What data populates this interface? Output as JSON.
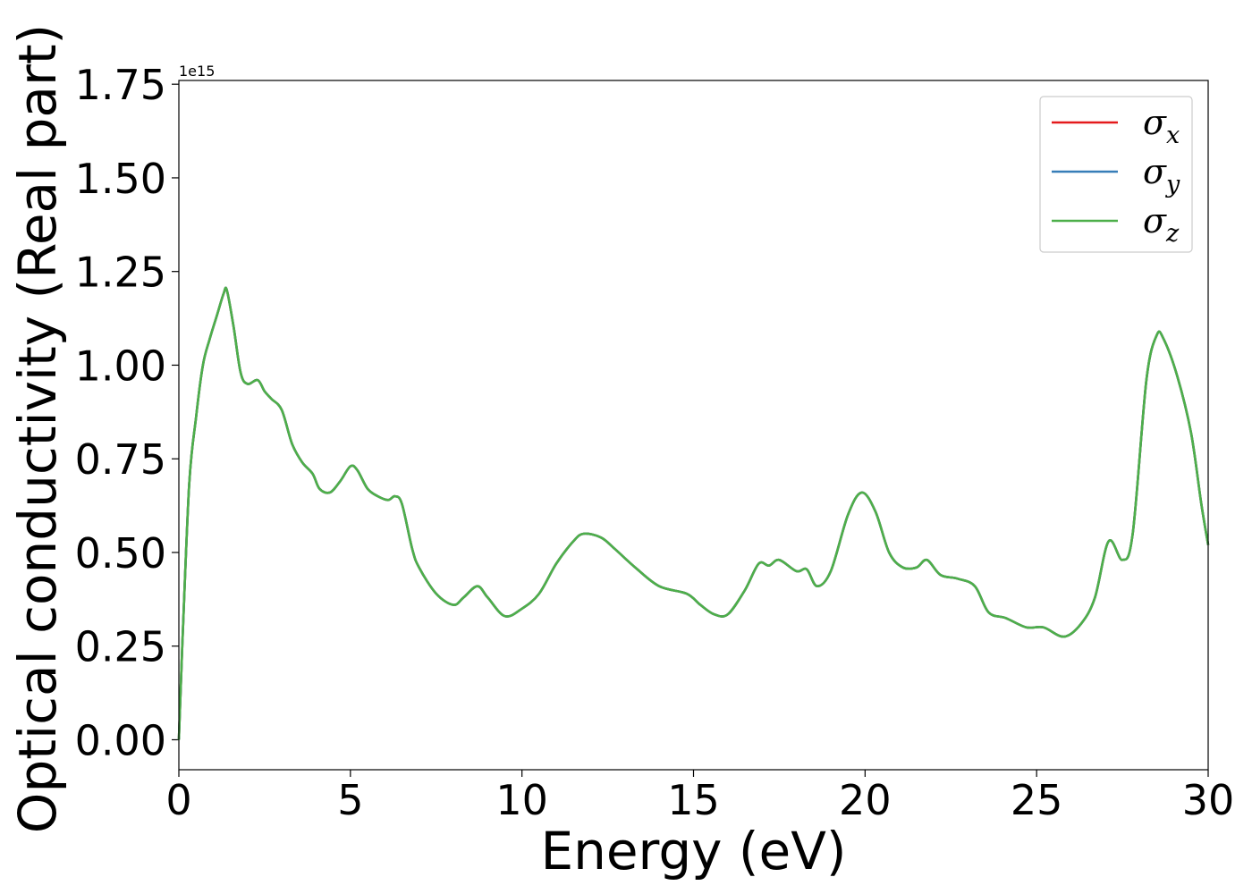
{
  "chart_data": {
    "type": "line",
    "xlabel": "Energy (eV)",
    "ylabel": "Optical conductivity (Real part)",
    "y_offset_label": "1e15",
    "xlim": [
      0,
      30
    ],
    "ylim": [
      -0.08,
      1.76
    ],
    "xticks": [
      0,
      5,
      10,
      15,
      20,
      25,
      30
    ],
    "yticks": [
      0.0,
      0.25,
      0.5,
      0.75,
      1.0,
      1.25,
      1.5,
      1.75
    ],
    "ytick_labels": [
      "0.00",
      "0.25",
      "0.50",
      "0.75",
      "1.00",
      "1.25",
      "1.50",
      "1.75"
    ],
    "grid": false,
    "legend_position": "top-right",
    "x": [
      0.0,
      0.1,
      0.3,
      0.5,
      0.7,
      0.9,
      1.1,
      1.3,
      1.4,
      1.6,
      1.8,
      2.0,
      2.3,
      2.5,
      2.7,
      3.0,
      3.3,
      3.6,
      3.9,
      4.1,
      4.4,
      4.7,
      5.0,
      5.2,
      5.5,
      5.8,
      6.1,
      6.3,
      6.5,
      6.8,
      7.0,
      7.5,
      8.0,
      8.3,
      8.7,
      9.0,
      9.5,
      10.0,
      10.5,
      11.0,
      11.5,
      11.8,
      12.3,
      12.7,
      13.3,
      14.0,
      14.8,
      15.2,
      15.6,
      16.0,
      16.5,
      16.9,
      17.2,
      17.5,
      18.0,
      18.3,
      18.6,
      19.0,
      19.5,
      19.9,
      20.3,
      20.7,
      21.1,
      21.5,
      21.8,
      22.2,
      22.7,
      23.2,
      23.6,
      24.1,
      24.7,
      25.2,
      25.8,
      26.3,
      26.7,
      27.1,
      27.5,
      27.8,
      28.2,
      28.5,
      28.7,
      29.1,
      29.5,
      29.8,
      30.0
    ],
    "series": [
      {
        "name": "σx",
        "color": "#e41a1c",
        "values": [
          0.0,
          0.25,
          0.68,
          0.86,
          1.0,
          1.07,
          1.13,
          1.19,
          1.2,
          1.1,
          0.98,
          0.95,
          0.96,
          0.93,
          0.91,
          0.88,
          0.79,
          0.74,
          0.71,
          0.67,
          0.66,
          0.69,
          0.73,
          0.72,
          0.67,
          0.65,
          0.64,
          0.65,
          0.63,
          0.51,
          0.46,
          0.39,
          0.36,
          0.38,
          0.41,
          0.38,
          0.33,
          0.35,
          0.39,
          0.47,
          0.53,
          0.55,
          0.54,
          0.51,
          0.46,
          0.41,
          0.39,
          0.36,
          0.335,
          0.335,
          0.4,
          0.47,
          0.465,
          0.48,
          0.45,
          0.455,
          0.41,
          0.45,
          0.6,
          0.66,
          0.61,
          0.5,
          0.46,
          0.46,
          0.48,
          0.44,
          0.43,
          0.41,
          0.34,
          0.325,
          0.3,
          0.3,
          0.275,
          0.31,
          0.38,
          0.53,
          0.48,
          0.55,
          0.96,
          1.08,
          1.07,
          0.97,
          0.82,
          0.63,
          0.52
        ]
      },
      {
        "name": "σy",
        "color": "#377eb8",
        "values": [
          0.0,
          0.25,
          0.68,
          0.86,
          1.0,
          1.07,
          1.13,
          1.19,
          1.2,
          1.1,
          0.98,
          0.95,
          0.96,
          0.93,
          0.91,
          0.88,
          0.79,
          0.74,
          0.71,
          0.67,
          0.66,
          0.69,
          0.73,
          0.72,
          0.67,
          0.65,
          0.64,
          0.65,
          0.63,
          0.51,
          0.46,
          0.39,
          0.36,
          0.38,
          0.41,
          0.38,
          0.33,
          0.35,
          0.39,
          0.47,
          0.53,
          0.55,
          0.54,
          0.51,
          0.46,
          0.41,
          0.39,
          0.36,
          0.335,
          0.335,
          0.4,
          0.47,
          0.465,
          0.48,
          0.45,
          0.455,
          0.41,
          0.45,
          0.6,
          0.66,
          0.61,
          0.5,
          0.46,
          0.46,
          0.48,
          0.44,
          0.43,
          0.41,
          0.34,
          0.325,
          0.3,
          0.3,
          0.275,
          0.31,
          0.38,
          0.53,
          0.48,
          0.55,
          0.96,
          1.08,
          1.07,
          0.97,
          0.82,
          0.63,
          0.52
        ]
      },
      {
        "name": "σz",
        "color": "#4daf4a",
        "values": [
          0.0,
          0.25,
          0.68,
          0.86,
          1.0,
          1.07,
          1.13,
          1.19,
          1.2,
          1.1,
          0.98,
          0.95,
          0.96,
          0.93,
          0.91,
          0.88,
          0.79,
          0.74,
          0.71,
          0.67,
          0.66,
          0.69,
          0.73,
          0.72,
          0.67,
          0.65,
          0.64,
          0.65,
          0.63,
          0.51,
          0.46,
          0.39,
          0.36,
          0.38,
          0.41,
          0.38,
          0.33,
          0.35,
          0.39,
          0.47,
          0.53,
          0.55,
          0.54,
          0.51,
          0.46,
          0.41,
          0.39,
          0.36,
          0.335,
          0.335,
          0.4,
          0.47,
          0.465,
          0.48,
          0.45,
          0.455,
          0.41,
          0.45,
          0.6,
          0.66,
          0.61,
          0.5,
          0.46,
          0.46,
          0.48,
          0.44,
          0.43,
          0.41,
          0.34,
          0.325,
          0.3,
          0.3,
          0.275,
          0.31,
          0.38,
          0.53,
          0.48,
          0.55,
          0.96,
          1.08,
          1.07,
          0.97,
          0.82,
          0.63,
          0.52
        ]
      }
    ]
  }
}
